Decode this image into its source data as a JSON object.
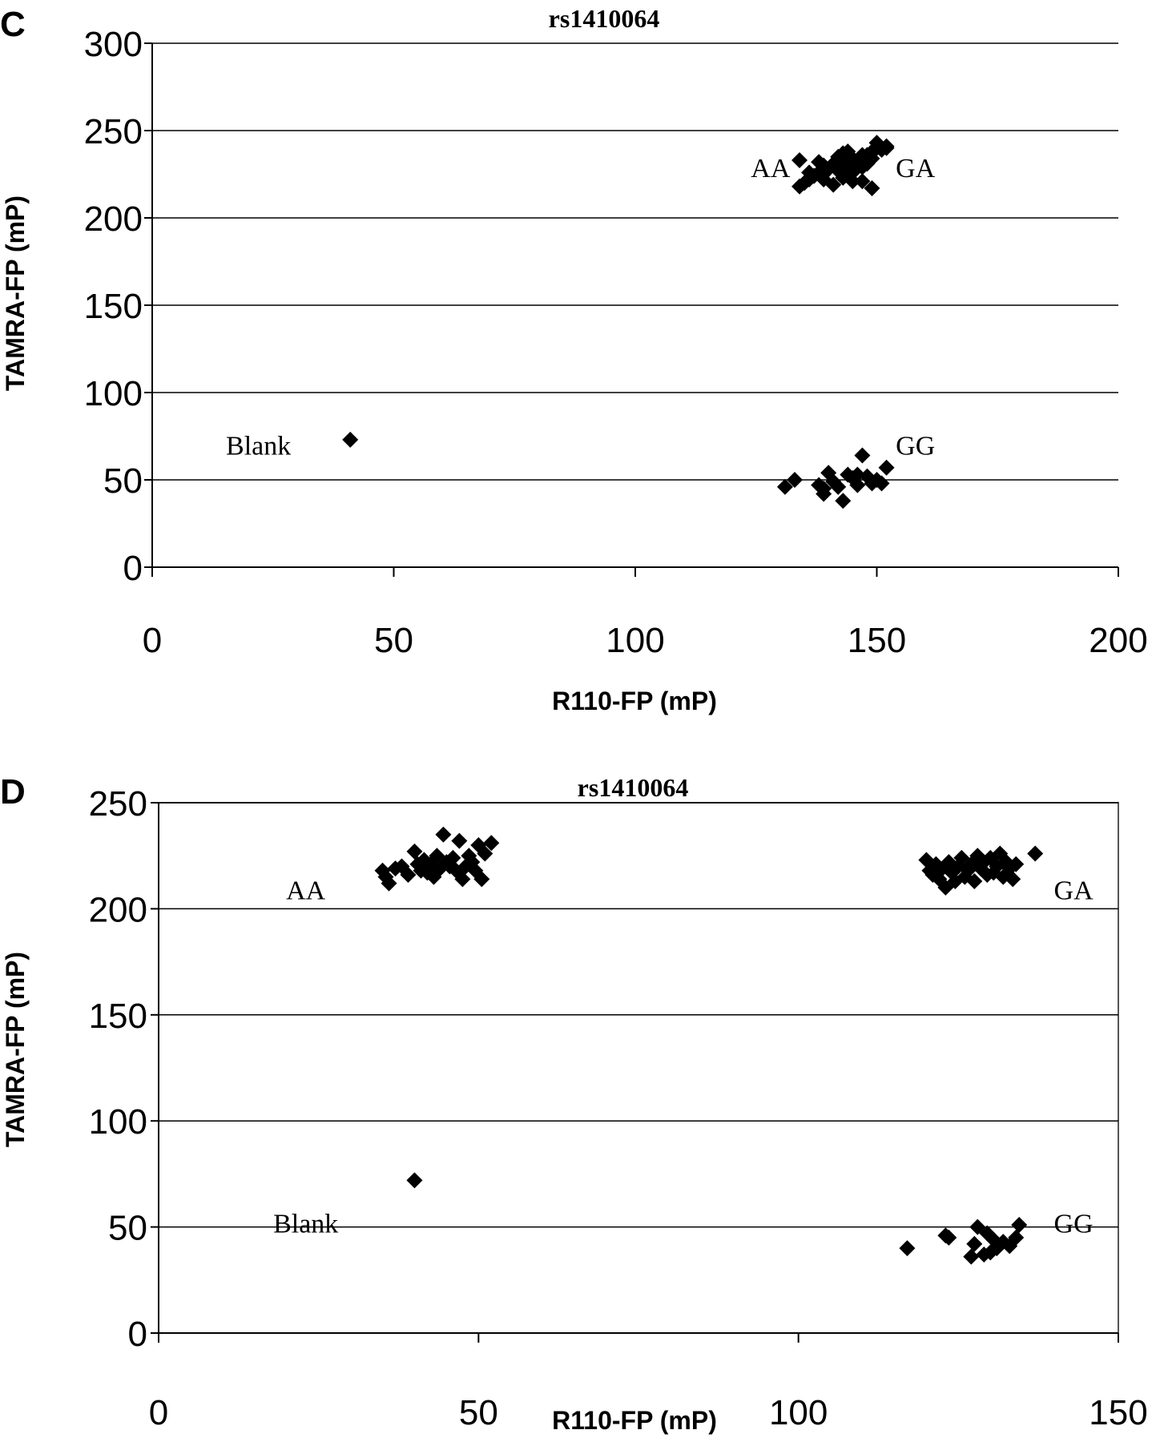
{
  "chart_data": [
    {
      "type": "scatter",
      "panel": "C",
      "title": "rs1410064",
      "xlabel": "R110-FP (mP)",
      "ylabel": "TAMRA-FP (mP)",
      "xlim": [
        0,
        200
      ],
      "ylim": [
        0,
        300
      ],
      "xticks": [
        "0",
        "50",
        "100",
        "150",
        "200"
      ],
      "yticks": [
        "0",
        "50",
        "100",
        "150",
        "200",
        "250",
        "300"
      ],
      "grid": "horizontal",
      "marker_color": "#000000",
      "annotations": [
        {
          "text": "AA",
          "x": 128,
          "y": 229
        },
        {
          "text": "GA",
          "x": 158,
          "y": 229
        },
        {
          "text": "Blank",
          "x": 22,
          "y": 70
        },
        {
          "text": "GG",
          "x": 158,
          "y": 70
        }
      ],
      "x": [
        41,
        134,
        135,
        136,
        137,
        138,
        139,
        140,
        141,
        142,
        143,
        144,
        145,
        146,
        147,
        148,
        149,
        150,
        151,
        152,
        134,
        136,
        138,
        140,
        142,
        144,
        146,
        148,
        150,
        152,
        139,
        141,
        143,
        145,
        147,
        149,
        137,
        141,
        145,
        149,
        143,
        147,
        139,
        145,
        131,
        133,
        138,
        139,
        140,
        141,
        142,
        143,
        144,
        145,
        146,
        147,
        148,
        149,
        150,
        151,
        152,
        139,
        146
      ],
      "y": [
        73,
        218,
        220,
        222,
        224,
        226,
        225,
        228,
        230,
        227,
        232,
        229,
        234,
        233,
        236,
        231,
        238,
        240,
        239,
        241,
        233,
        226,
        232,
        228,
        235,
        238,
        230,
        236,
        243,
        240,
        222,
        219,
        223,
        226,
        221,
        217,
        224,
        231,
        228,
        234,
        237,
        229,
        230,
        221,
        46,
        50,
        47,
        42,
        54,
        49,
        46,
        38,
        53,
        51,
        47,
        64,
        52,
        48,
        50,
        48,
        57,
        45,
        53
      ]
    },
    {
      "type": "scatter",
      "panel": "D",
      "title": "rs1410064",
      "xlabel": "R110-FP (mP)",
      "ylabel": "TAMRA-FP (mP)",
      "xlim": [
        0,
        150
      ],
      "ylim": [
        0,
        250
      ],
      "xticks": [
        "0",
        "50",
        "100",
        "150"
      ],
      "yticks": [
        "0",
        "50",
        "100",
        "150",
        "200",
        "250"
      ],
      "grid": "horizontal",
      "marker_color": "#000000",
      "annotations": [
        {
          "text": "AA",
          "x": 23,
          "y": 209
        },
        {
          "text": "GA",
          "x": 143,
          "y": 209
        },
        {
          "text": "Blank",
          "x": 23,
          "y": 52
        },
        {
          "text": "GG",
          "x": 143,
          "y": 52
        }
      ],
      "x": [
        35,
        35.5,
        36,
        37,
        38,
        39,
        40,
        40.5,
        41,
        41.5,
        42,
        42.5,
        43,
        43.5,
        44,
        44.5,
        45,
        45.5,
        46,
        46.5,
        47,
        47.5,
        48,
        48.5,
        49,
        49.5,
        50,
        50.5,
        51,
        52,
        40,
        120,
        120.5,
        121,
        121.5,
        122,
        122.5,
        123,
        123.5,
        124,
        124.5,
        125,
        125.5,
        126,
        126.5,
        127,
        127.5,
        128,
        128.5,
        129,
        129.5,
        130,
        130.5,
        131,
        131.5,
        132,
        132.5,
        133,
        133.5,
        134,
        137,
        117,
        123,
        123.5,
        127,
        127.5,
        128,
        129,
        129.5,
        130,
        130.5,
        131,
        132,
        133,
        134,
        134.5
      ],
      "y": [
        218,
        215,
        212,
        219,
        220,
        216,
        227,
        221,
        218,
        223,
        217,
        221,
        215,
        225,
        219,
        235,
        222,
        220,
        224,
        218,
        232,
        214,
        220,
        225,
        222,
        218,
        230,
        214,
        226,
        231,
        72,
        223,
        218,
        216,
        221,
        214,
        219,
        210,
        222,
        217,
        213,
        220,
        224,
        215,
        218,
        221,
        213,
        225,
        219,
        222,
        216,
        224,
        217,
        220,
        226,
        215,
        222,
        219,
        214,
        221,
        226,
        40,
        46,
        45,
        36,
        42,
        50,
        37,
        47,
        38,
        44,
        40,
        43,
        41,
        45,
        51
      ]
    }
  ]
}
